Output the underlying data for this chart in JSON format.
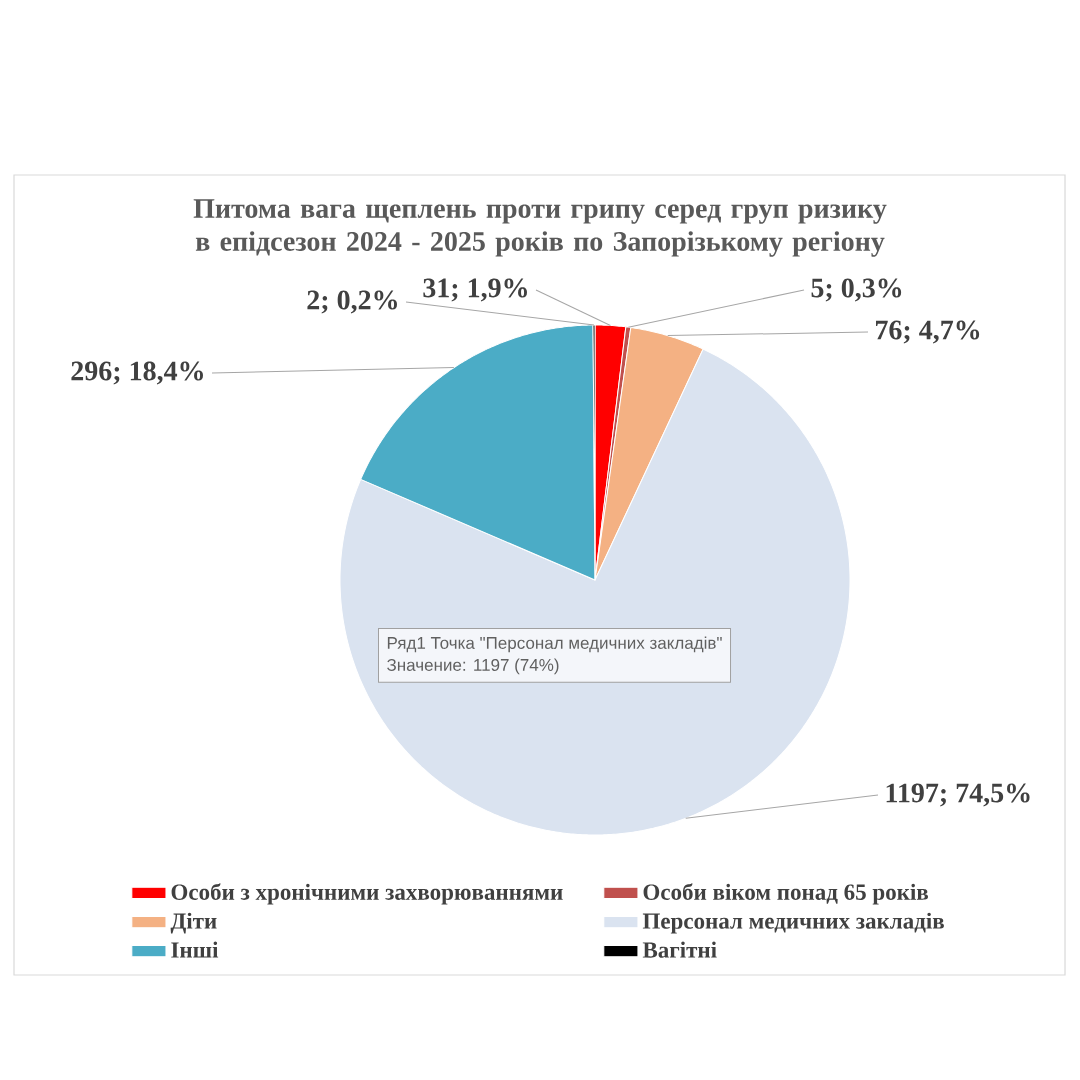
{
  "chart_data": {
    "type": "pie",
    "title": "Питома вага щеплень проти грипу серед груп ризику в епідсезон 2024 - 2025 років по Запорізькому регіону",
    "categories": [
      "Особи з хронічними захворюваннями",
      "Особи віком понад 65 років",
      "Діти",
      "Персонал медичних закладів",
      "Інші",
      "Вагітні"
    ],
    "values": [
      31,
      5,
      76,
      1197,
      296,
      2
    ],
    "colors": [
      "#ff0000",
      "#c0504d",
      "#f4b183",
      "#dae3f0",
      "#4bacc6",
      "#000000"
    ],
    "value_labels": [
      "31; 1,9%",
      "5; 0,3%",
      "76; 4,7%",
      "1197; 74,5%",
      "296; 18,4%",
      "2; 0,2%"
    ],
    "legend": "bottom",
    "annotations": [
      "Ряд1 Точка \"Персонал медичних закладів\"",
      "Значение: 1197 (74%)"
    ]
  }
}
